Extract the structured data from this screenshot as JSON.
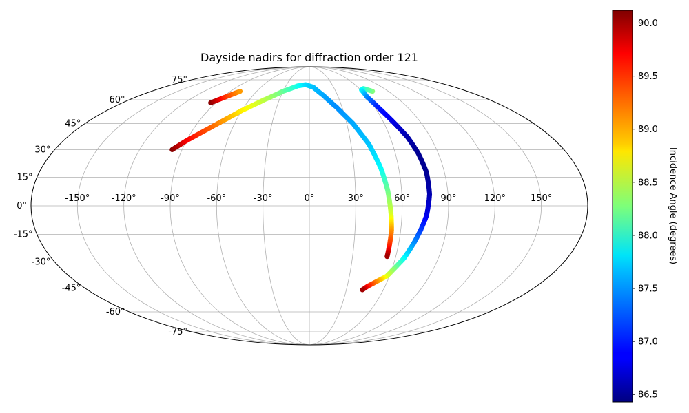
{
  "chart_data": {
    "type": "scatter",
    "projection": "mollweide",
    "title": "Dayside nadirs for diffraction order 121",
    "xlabel": "",
    "ylabel": "",
    "grid": true,
    "x_ticks": [
      -150,
      -120,
      -90,
      -60,
      -30,
      0,
      30,
      60,
      90,
      120,
      150
    ],
    "x_tick_labels": [
      "-150°",
      "-120°",
      "-90°",
      "-60°",
      "-30°",
      "0°",
      "30°",
      "60°",
      "90°",
      "120°",
      "150°"
    ],
    "y_ticks": [
      -75,
      -60,
      -45,
      -30,
      -15,
      0,
      15,
      30,
      45,
      60,
      75
    ],
    "y_tick_labels": [
      "-75°",
      "-60°",
      "-45°",
      "-30°",
      "-15°",
      "0°",
      "15°",
      "30°",
      "45°",
      "60°",
      "75°"
    ],
    "colorbar": {
      "label": "Incidence Angle (degrees)",
      "colormap": "jet",
      "range": [
        86.43,
        90.12
      ],
      "ticks": [
        86.5,
        87.0,
        87.5,
        88.0,
        88.5,
        89.0,
        89.5,
        90.0
      ],
      "tick_labels": [
        "86.5",
        "87.0",
        "87.5",
        "88.0",
        "88.5",
        "89.0",
        "89.5",
        "90.0"
      ]
    },
    "series": [
      {
        "points": [
          {
            "lon": -95,
            "lat": 58,
            "c": 90.1
          },
          {
            "lon": -91,
            "lat": 60,
            "c": 89.8
          },
          {
            "lon": -87,
            "lat": 62,
            "c": 89.5
          },
          {
            "lon": -83,
            "lat": 64,
            "c": 89.3
          },
          {
            "lon": -79,
            "lat": 66,
            "c": 89.1
          }
        ]
      },
      {
        "points": [
          {
            "lon": -97,
            "lat": 30,
            "c": 90.1
          },
          {
            "lon": -90,
            "lat": 35,
            "c": 89.7
          },
          {
            "lon": -80,
            "lat": 41,
            "c": 89.4
          },
          {
            "lon": -70,
            "lat": 47,
            "c": 89.1
          },
          {
            "lon": -60,
            "lat": 53,
            "c": 88.8
          },
          {
            "lon": -45,
            "lat": 60,
            "c": 88.5
          },
          {
            "lon": -30,
            "lat": 66,
            "c": 88.2
          },
          {
            "lon": -15,
            "lat": 70,
            "c": 87.9
          },
          {
            "lon": -5,
            "lat": 71,
            "c": 87.7
          },
          {
            "lon": 5,
            "lat": 69,
            "c": 87.6
          },
          {
            "lon": 15,
            "lat": 63,
            "c": 87.5
          },
          {
            "lon": 25,
            "lat": 55,
            "c": 87.4
          },
          {
            "lon": 35,
            "lat": 45,
            "c": 87.5
          },
          {
            "lon": 43,
            "lat": 33,
            "c": 87.6
          },
          {
            "lon": 48,
            "lat": 20,
            "c": 87.8
          },
          {
            "lon": 51,
            "lat": 8,
            "c": 88.2
          },
          {
            "lon": 53,
            "lat": -5,
            "c": 88.6
          },
          {
            "lon": 54,
            "lat": -13,
            "c": 89.1
          },
          {
            "lon": 54,
            "lat": -21,
            "c": 89.5
          },
          {
            "lon": 54,
            "lat": -27,
            "c": 90.0
          }
        ]
      },
      {
        "points": [
          {
            "lon": 72,
            "lat": 66,
            "c": 88.3
          },
          {
            "lon": 65,
            "lat": 68,
            "c": 88.0
          },
          {
            "lon": 61,
            "lat": 67,
            "c": 87.8
          },
          {
            "lon": 60,
            "lat": 62,
            "c": 87.4
          },
          {
            "lon": 63,
            "lat": 55,
            "c": 87.0
          },
          {
            "lon": 68,
            "lat": 46,
            "c": 86.8
          },
          {
            "lon": 73,
            "lat": 37,
            "c": 86.6
          },
          {
            "lon": 76,
            "lat": 28,
            "c": 86.5
          },
          {
            "lon": 78,
            "lat": 18,
            "c": 86.5
          },
          {
            "lon": 78,
            "lat": 6,
            "c": 86.6
          },
          {
            "lon": 76,
            "lat": -5,
            "c": 86.8
          },
          {
            "lon": 73,
            "lat": -13,
            "c": 87.1
          },
          {
            "lon": 70,
            "lat": -20,
            "c": 87.4
          },
          {
            "lon": 66,
            "lat": -28,
            "c": 87.8
          },
          {
            "lon": 62,
            "lat": -33,
            "c": 88.2
          },
          {
            "lon": 58,
            "lat": -38,
            "c": 88.6
          },
          {
            "lon": 52,
            "lat": -41,
            "c": 89.1
          },
          {
            "lon": 46,
            "lat": -44,
            "c": 89.6
          },
          {
            "lon": 43,
            "lat": -46,
            "c": 90.0
          }
        ]
      }
    ]
  }
}
